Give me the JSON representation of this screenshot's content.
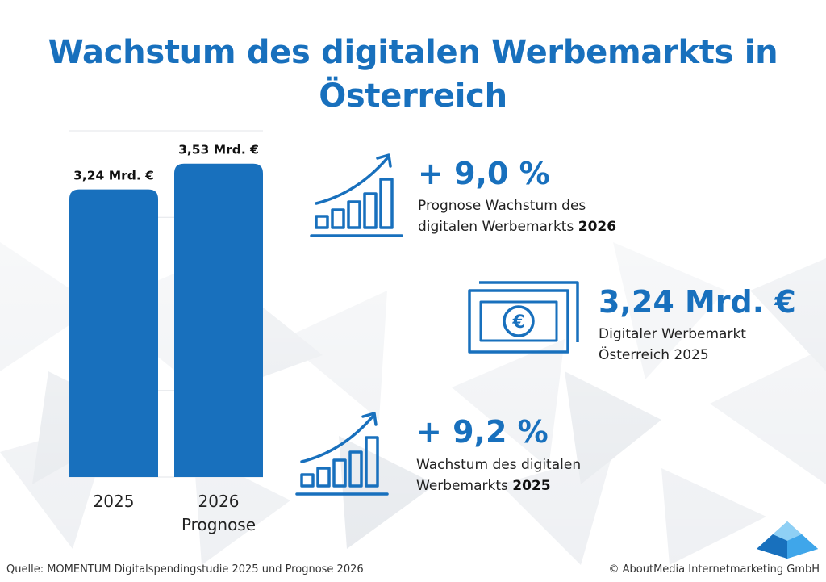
{
  "title": "Wachstum des digitalen Werbemarkts in Österreich",
  "chart_data": {
    "type": "bar",
    "categories": [
      "2025",
      "2026"
    ],
    "category_sublabels": [
      "",
      "Prognose"
    ],
    "values": [
      3.24,
      3.53
    ],
    "value_labels": [
      "3,24 Mrd. €",
      "3,53 Mrd. €"
    ],
    "unit": "Mrd. €",
    "ylim": [
      0,
      3.9
    ],
    "grid": true,
    "color": "#1870bd"
  },
  "stats": [
    {
      "value": "+ 9,0 %",
      "desc_line1": "Prognose Wachstum des",
      "desc_line2_prefix": "digitalen Werbemarkts ",
      "desc_line2_bold": "2026",
      "icon": "growth-chart-icon"
    },
    {
      "value": "3,24 Mrd. €",
      "desc_line1": "Digitaler Werbemarkt",
      "desc_line2": "Österreich 2025",
      "icon": "euro-banknote-icon"
    },
    {
      "value": "+ 9,2 %",
      "desc_line1": "Wachstum des digitalen",
      "desc_line2_prefix": "Werbemarkts ",
      "desc_line2_bold": "2025",
      "icon": "growth-chart-icon"
    }
  ],
  "footer": {
    "source": "Quelle: MOMENTUM Digitalspendingstudie 2025 und Prognose 2026",
    "copyright": "© AboutMedia Internetmarketing GmbH"
  },
  "colors": {
    "accent": "#1870bd",
    "text": "#222222"
  }
}
